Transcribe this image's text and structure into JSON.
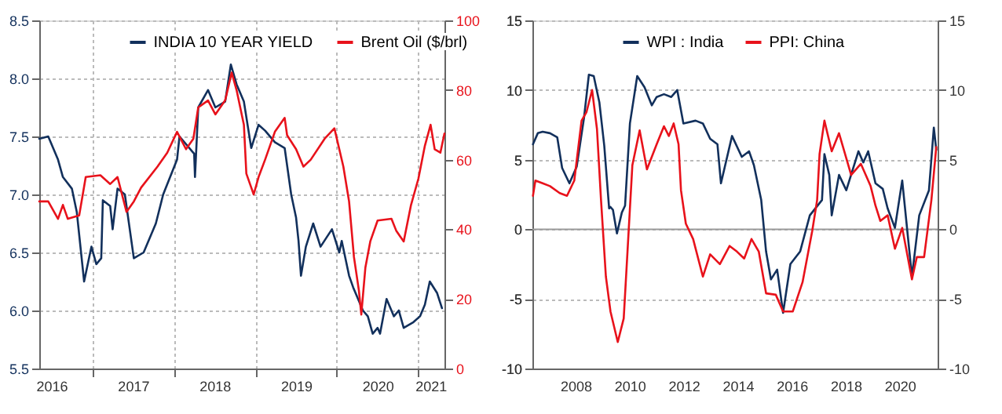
{
  "chart_data": [
    {
      "type": "line",
      "legend": "top",
      "grid": true,
      "line_style": "solid",
      "xlim": [
        2016.35,
        2021.32
      ],
      "xticks": [
        {
          "value": 2016.5,
          "label": "2016"
        },
        {
          "value": 2017,
          "label": null
        },
        {
          "value": 2017.5,
          "label": "2017"
        },
        {
          "value": 2018,
          "label": null
        },
        {
          "value": 2018.5,
          "label": "2018"
        },
        {
          "value": 2019,
          "label": null
        },
        {
          "value": 2019.5,
          "label": "2019"
        },
        {
          "value": 2020,
          "label": null
        },
        {
          "value": 2020.5,
          "label": "2020"
        },
        {
          "value": 2021,
          "label": null
        },
        {
          "value": 2021.15,
          "label": "2021"
        }
      ],
      "ylim": [
        5.5,
        8.5
      ],
      "yticks": [
        5.5,
        {
          "value": 6,
          "label": "6.0"
        },
        6.5,
        {
          "value": 7,
          "label": "7.0"
        },
        7.5,
        {
          "value": 8,
          "label": "8.0"
        },
        8.5
      ],
      "y2lim": [
        0,
        100
      ],
      "y2ticks": [
        0,
        20,
        40,
        60,
        80,
        100
      ],
      "series": [
        {
          "name": "INDIA 10 YEAR YIELD",
          "color": "#12305c",
          "axis": "y",
          "x": [
            2016.35,
            2016.46,
            2016.58,
            2016.64,
            2016.75,
            2016.81,
            2016.9,
            2016.99,
            2017.05,
            2017.11,
            2017.13,
            2017.22,
            2017.25,
            2017.31,
            2017.4,
            2017.51,
            2017.63,
            2017.78,
            2017.87,
            2018.04,
            2018.07,
            2018.25,
            2018.26,
            2018.3,
            2018.42,
            2018.51,
            2018.63,
            2018.7,
            2018.77,
            2018.86,
            2018.95,
            2019.04,
            2019.12,
            2019.24,
            2019.36,
            2019.44,
            2019.5,
            2019.53,
            2019.56,
            2019.62,
            2019.71,
            2019.8,
            2019.94,
            2020.03,
            2020.06,
            2020.15,
            2020.2,
            2020.32,
            2020.38,
            2020.44,
            2020.5,
            2020.53,
            2020.61,
            2020.7,
            2020.76,
            2020.82,
            2020.94,
            2021.02,
            2021.08,
            2021.14,
            2021.23,
            2021.29
          ],
          "values": [
            7.48,
            7.5,
            7.3,
            7.15,
            7.05,
            6.85,
            6.25,
            6.55,
            6.4,
            6.45,
            6.95,
            6.9,
            6.7,
            7.05,
            7.0,
            6.45,
            6.5,
            6.75,
            7.0,
            7.3,
            7.5,
            7.35,
            7.15,
            7.75,
            7.9,
            7.75,
            7.8,
            8.12,
            7.95,
            7.8,
            7.4,
            7.6,
            7.55,
            7.45,
            7.4,
            7.0,
            6.8,
            6.6,
            6.3,
            6.55,
            6.75,
            6.55,
            6.7,
            6.5,
            6.6,
            6.3,
            6.2,
            6.0,
            5.95,
            5.8,
            5.85,
            5.8,
            6.1,
            5.95,
            6.0,
            5.85,
            5.9,
            5.95,
            6.05,
            6.25,
            6.15,
            6.02
          ]
        },
        {
          "name": "Brent Oil ($/brl)",
          "color": "#e8121b",
          "axis": "y2",
          "x": [
            2016.35,
            2016.46,
            2016.58,
            2016.64,
            2016.7,
            2016.84,
            2016.92,
            2017.1,
            2017.22,
            2017.31,
            2017.42,
            2017.51,
            2017.6,
            2017.8,
            2017.92,
            2018.04,
            2018.15,
            2018.24,
            2018.3,
            2018.42,
            2018.51,
            2018.63,
            2018.71,
            2018.77,
            2018.86,
            2018.89,
            2018.95,
            2018.98,
            2019.04,
            2019.12,
            2019.24,
            2019.36,
            2019.39,
            2019.5,
            2019.59,
            2019.68,
            2019.85,
            2019.97,
            2020.08,
            2020.15,
            2020.18,
            2020.21,
            2020.27,
            2020.3,
            2020.35,
            2020.41,
            2020.5,
            2020.67,
            2020.73,
            2020.82,
            2020.91,
            2021.0,
            2021.08,
            2021.15,
            2021.2,
            2021.27,
            2021.32
          ],
          "values": [
            48,
            48,
            43,
            47,
            43,
            44,
            55,
            55.5,
            53,
            55,
            45,
            48,
            52,
            58,
            62,
            68,
            63,
            66,
            75,
            77,
            73,
            77,
            85,
            80,
            70,
            56,
            52,
            50,
            55,
            60,
            68,
            72,
            67,
            63,
            58,
            60,
            66,
            69,
            58,
            48,
            40,
            32,
            22.5,
            15.5,
            29,
            36.5,
            42.5,
            43,
            39.5,
            36.5,
            47,
            54.5,
            64,
            70,
            63,
            62,
            67.5
          ]
        }
      ]
    },
    {
      "type": "line",
      "legend": "top",
      "grid": true,
      "line_style": "solid",
      "xlim": [
        2006.4,
        2021.4
      ],
      "xticks": [
        2008,
        2010,
        2012,
        2014,
        2016,
        2018,
        2020
      ],
      "ylim": [
        -10,
        15
      ],
      "yticks": [
        -10,
        -5,
        0,
        5,
        10,
        15
      ],
      "y2lim": [
        -10,
        15
      ],
      "y2ticks": [
        -10,
        -5,
        0,
        5,
        10,
        15
      ],
      "ref_lines": [
        {
          "axis": "y",
          "value": 0,
          "color": "#9a9a9a"
        }
      ],
      "series": [
        {
          "name": "WPI : India",
          "color": "#12305c",
          "x": [
            2006.42,
            2006.6,
            2006.78,
            2007.05,
            2007.32,
            2007.5,
            2007.77,
            2008.04,
            2008.31,
            2008.49,
            2008.67,
            2008.88,
            2009.06,
            2009.24,
            2009.29,
            2009.38,
            2009.53,
            2009.71,
            2009.83,
            2010.01,
            2010.28,
            2010.55,
            2010.82,
            2011.0,
            2011.27,
            2011.54,
            2011.76,
            2011.99,
            2012.44,
            2012.71,
            2012.98,
            2013.25,
            2013.38,
            2013.79,
            2014.15,
            2014.42,
            2014.6,
            2014.87,
            2015.05,
            2015.23,
            2015.46,
            2015.68,
            2015.95,
            2016.31,
            2016.67,
            2017.12,
            2017.21,
            2017.39,
            2017.48,
            2017.75,
            2018.02,
            2018.47,
            2018.65,
            2018.83,
            2019.1,
            2019.37,
            2019.55,
            2019.82,
            2020.09,
            2020.45,
            2020.72,
            2021.08,
            2021.26,
            2021.35
          ],
          "values": [
            6.1,
            6.9,
            7.0,
            6.9,
            6.6,
            4.4,
            3.3,
            4.5,
            8.0,
            11.1,
            11.0,
            9.1,
            6.0,
            1.5,
            1.6,
            1.4,
            -0.3,
            1.2,
            1.7,
            7.6,
            11.0,
            10.2,
            8.9,
            9.5,
            9.7,
            9.5,
            10.0,
            7.6,
            7.8,
            7.6,
            6.5,
            6.1,
            3.3,
            6.7,
            5.2,
            5.6,
            4.6,
            2.1,
            -1.6,
            -3.6,
            -2.9,
            -6.0,
            -2.5,
            -1.6,
            1.0,
            2.1,
            5.4,
            3.9,
            1.0,
            3.9,
            2.8,
            5.6,
            4.8,
            5.6,
            3.3,
            2.9,
            1.5,
            0.1,
            3.5,
            -3.4,
            1.0,
            2.8,
            7.3,
            5.7
          ]
        },
        {
          "name": "PPI: China",
          "color": "#e8121b",
          "x": [
            2006.42,
            2006.51,
            2006.78,
            2007.05,
            2007.41,
            2007.68,
            2007.95,
            2008.22,
            2008.4,
            2008.61,
            2008.79,
            2008.94,
            2009.12,
            2009.29,
            2009.56,
            2009.78,
            2009.92,
            2010.1,
            2010.37,
            2010.64,
            2011.0,
            2011.27,
            2011.45,
            2011.63,
            2011.81,
            2011.9,
            2012.08,
            2012.35,
            2012.71,
            2012.98,
            2013.34,
            2013.7,
            2013.97,
            2014.24,
            2014.51,
            2014.78,
            2015.05,
            2015.41,
            2015.68,
            2016.04,
            2016.4,
            2016.76,
            2016.94,
            2017.03,
            2017.21,
            2017.48,
            2017.75,
            2018.2,
            2018.56,
            2018.92,
            2019.1,
            2019.28,
            2019.55,
            2019.82,
            2020.09,
            2020.45,
            2020.63,
            2020.9,
            2021.17,
            2021.35
          ],
          "values": [
            2.4,
            3.5,
            3.3,
            3.1,
            2.6,
            2.4,
            3.5,
            7.8,
            8.4,
            10.0,
            7.2,
            2.1,
            -3.4,
            -5.9,
            -8.1,
            -6.4,
            -1.6,
            4.6,
            7.1,
            4.3,
            6.1,
            7.4,
            6.7,
            7.6,
            6.1,
            2.8,
            0.4,
            -0.7,
            -3.4,
            -1.8,
            -2.5,
            -1.2,
            -1.6,
            -2.1,
            -0.7,
            -1.6,
            -4.6,
            -4.7,
            -5.9,
            -5.9,
            -3.8,
            -0.1,
            2.1,
            5.4,
            7.8,
            5.6,
            6.9,
            3.9,
            4.7,
            3.1,
            1.7,
            0.6,
            1.0,
            -1.4,
            0.1,
            -3.6,
            -2.0,
            -2.0,
            2.1,
            5.9
          ]
        }
      ]
    }
  ]
}
